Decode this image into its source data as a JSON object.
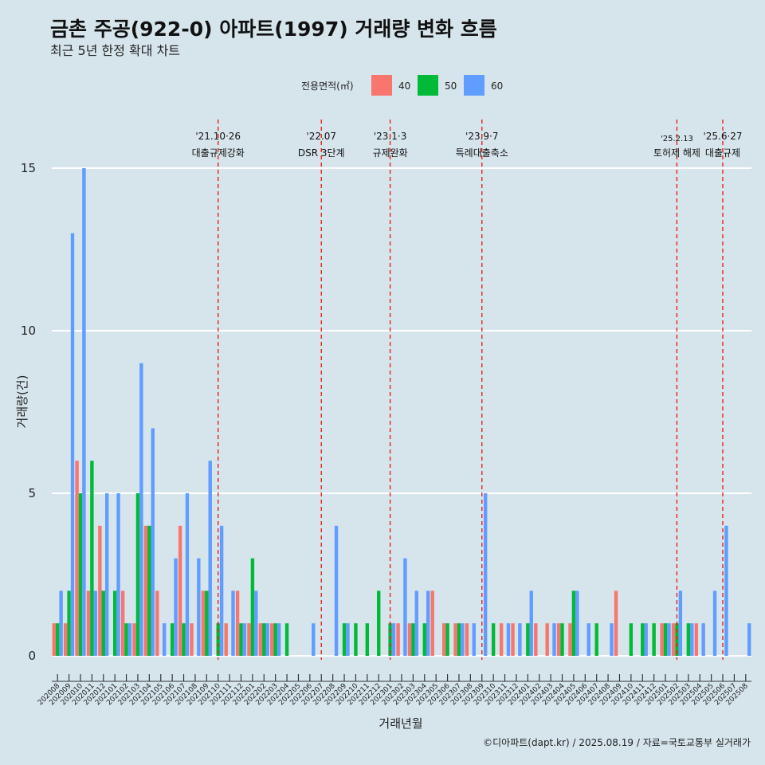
{
  "chart_data": {
    "type": "bar",
    "title": "금촌 주공(922-0) 아파트(1997) 거래량 변화 흐름",
    "subtitle": "최근 5년 한정 확대 차트",
    "xlabel": "거래년월",
    "ylabel": "거래량(건)",
    "caption": "©디아파트(dapt.kr) / 2025.08.19 / 자료=국토교통부 실거래가",
    "ylim": [
      0,
      16
    ],
    "yticks": [
      0,
      5,
      10,
      15
    ],
    "grid": true,
    "legend": {
      "position": "top",
      "title": "전용면적(㎡)",
      "entries": [
        {
          "name": "40",
          "color": "#f8766d"
        },
        {
          "name": "50",
          "color": "#00ba38"
        },
        {
          "name": "60",
          "color": "#619cff"
        }
      ]
    },
    "categories": [
      "202008",
      "202009",
      "202010",
      "202011",
      "202012",
      "202101",
      "202102",
      "202103",
      "202104",
      "202105",
      "202106",
      "202107",
      "202108",
      "202109",
      "202110",
      "202111",
      "202112",
      "202201",
      "202202",
      "202203",
      "202204",
      "202205",
      "202206",
      "202207",
      "202208",
      "202209",
      "202210",
      "202211",
      "202212",
      "202301",
      "202302",
      "202303",
      "202304",
      "202305",
      "202306",
      "202307",
      "202308",
      "202309",
      "202310",
      "202311",
      "202312",
      "202401",
      "202402",
      "202403",
      "202404",
      "202405",
      "202406",
      "202407",
      "202408",
      "202409",
      "202410",
      "202411",
      "202412",
      "202501",
      "202502",
      "202503",
      "202504",
      "202505",
      "202506",
      "202507",
      "202508"
    ],
    "series": [
      {
        "name": "40",
        "values": [
          1,
          1,
          6,
          2,
          4,
          0,
          2,
          1,
          4,
          2,
          0,
          4,
          1,
          2,
          0,
          1,
          2,
          1,
          1,
          1,
          0,
          0,
          0,
          0,
          0,
          0,
          0,
          0,
          0,
          0,
          1,
          1,
          0,
          2,
          1,
          1,
          1,
          0,
          0,
          1,
          1,
          0,
          1,
          1,
          1,
          1,
          0,
          0,
          0,
          2,
          0,
          0,
          0,
          1,
          1,
          0,
          1,
          0,
          0,
          0,
          0
        ]
      },
      {
        "name": "50",
        "values": [
          1,
          2,
          5,
          6,
          2,
          2,
          1,
          5,
          4,
          0,
          1,
          1,
          0,
          2,
          1,
          0,
          1,
          3,
          1,
          1,
          1,
          0,
          0,
          0,
          0,
          1,
          1,
          1,
          2,
          1,
          0,
          1,
          1,
          0,
          1,
          1,
          0,
          0,
          1,
          0,
          0,
          1,
          0,
          0,
          1,
          2,
          0,
          1,
          0,
          0,
          1,
          1,
          1,
          1,
          1,
          1,
          0,
          0,
          0,
          0,
          0
        ]
      },
      {
        "name": "60",
        "values": [
          2,
          13,
          15,
          2,
          5,
          5,
          1,
          9,
          7,
          1,
          3,
          5,
          3,
          6,
          4,
          2,
          1,
          2,
          1,
          1,
          0,
          0,
          1,
          0,
          4,
          1,
          0,
          0,
          0,
          1,
          3,
          2,
          2,
          0,
          0,
          1,
          1,
          5,
          0,
          1,
          1,
          2,
          0,
          1,
          0,
          2,
          1,
          0,
          1,
          0,
          0,
          1,
          0,
          1,
          2,
          1,
          1,
          2,
          4,
          0,
          1
        ]
      }
    ],
    "annotations": [
      {
        "position_category": "202110",
        "line1": "'21.10·26",
        "line2": "대출규제강화",
        "small": false
      },
      {
        "position_category": "202207",
        "line1": "'22.07",
        "line2": "DSR 3단계",
        "small": false
      },
      {
        "position_category": "202301",
        "line1": "'23.1·3",
        "line2": "규제완화",
        "small": false
      },
      {
        "position_category": "202309",
        "line1": "'23.9·7",
        "line2": "특례대출축소",
        "small": false
      },
      {
        "position_category": "202502",
        "line1": "'25.2.13",
        "line2": "토허제 해제",
        "small": true
      },
      {
        "position_category": "202506",
        "line1": "'25.6·27",
        "line2": "대출규제",
        "small": false
      }
    ]
  }
}
